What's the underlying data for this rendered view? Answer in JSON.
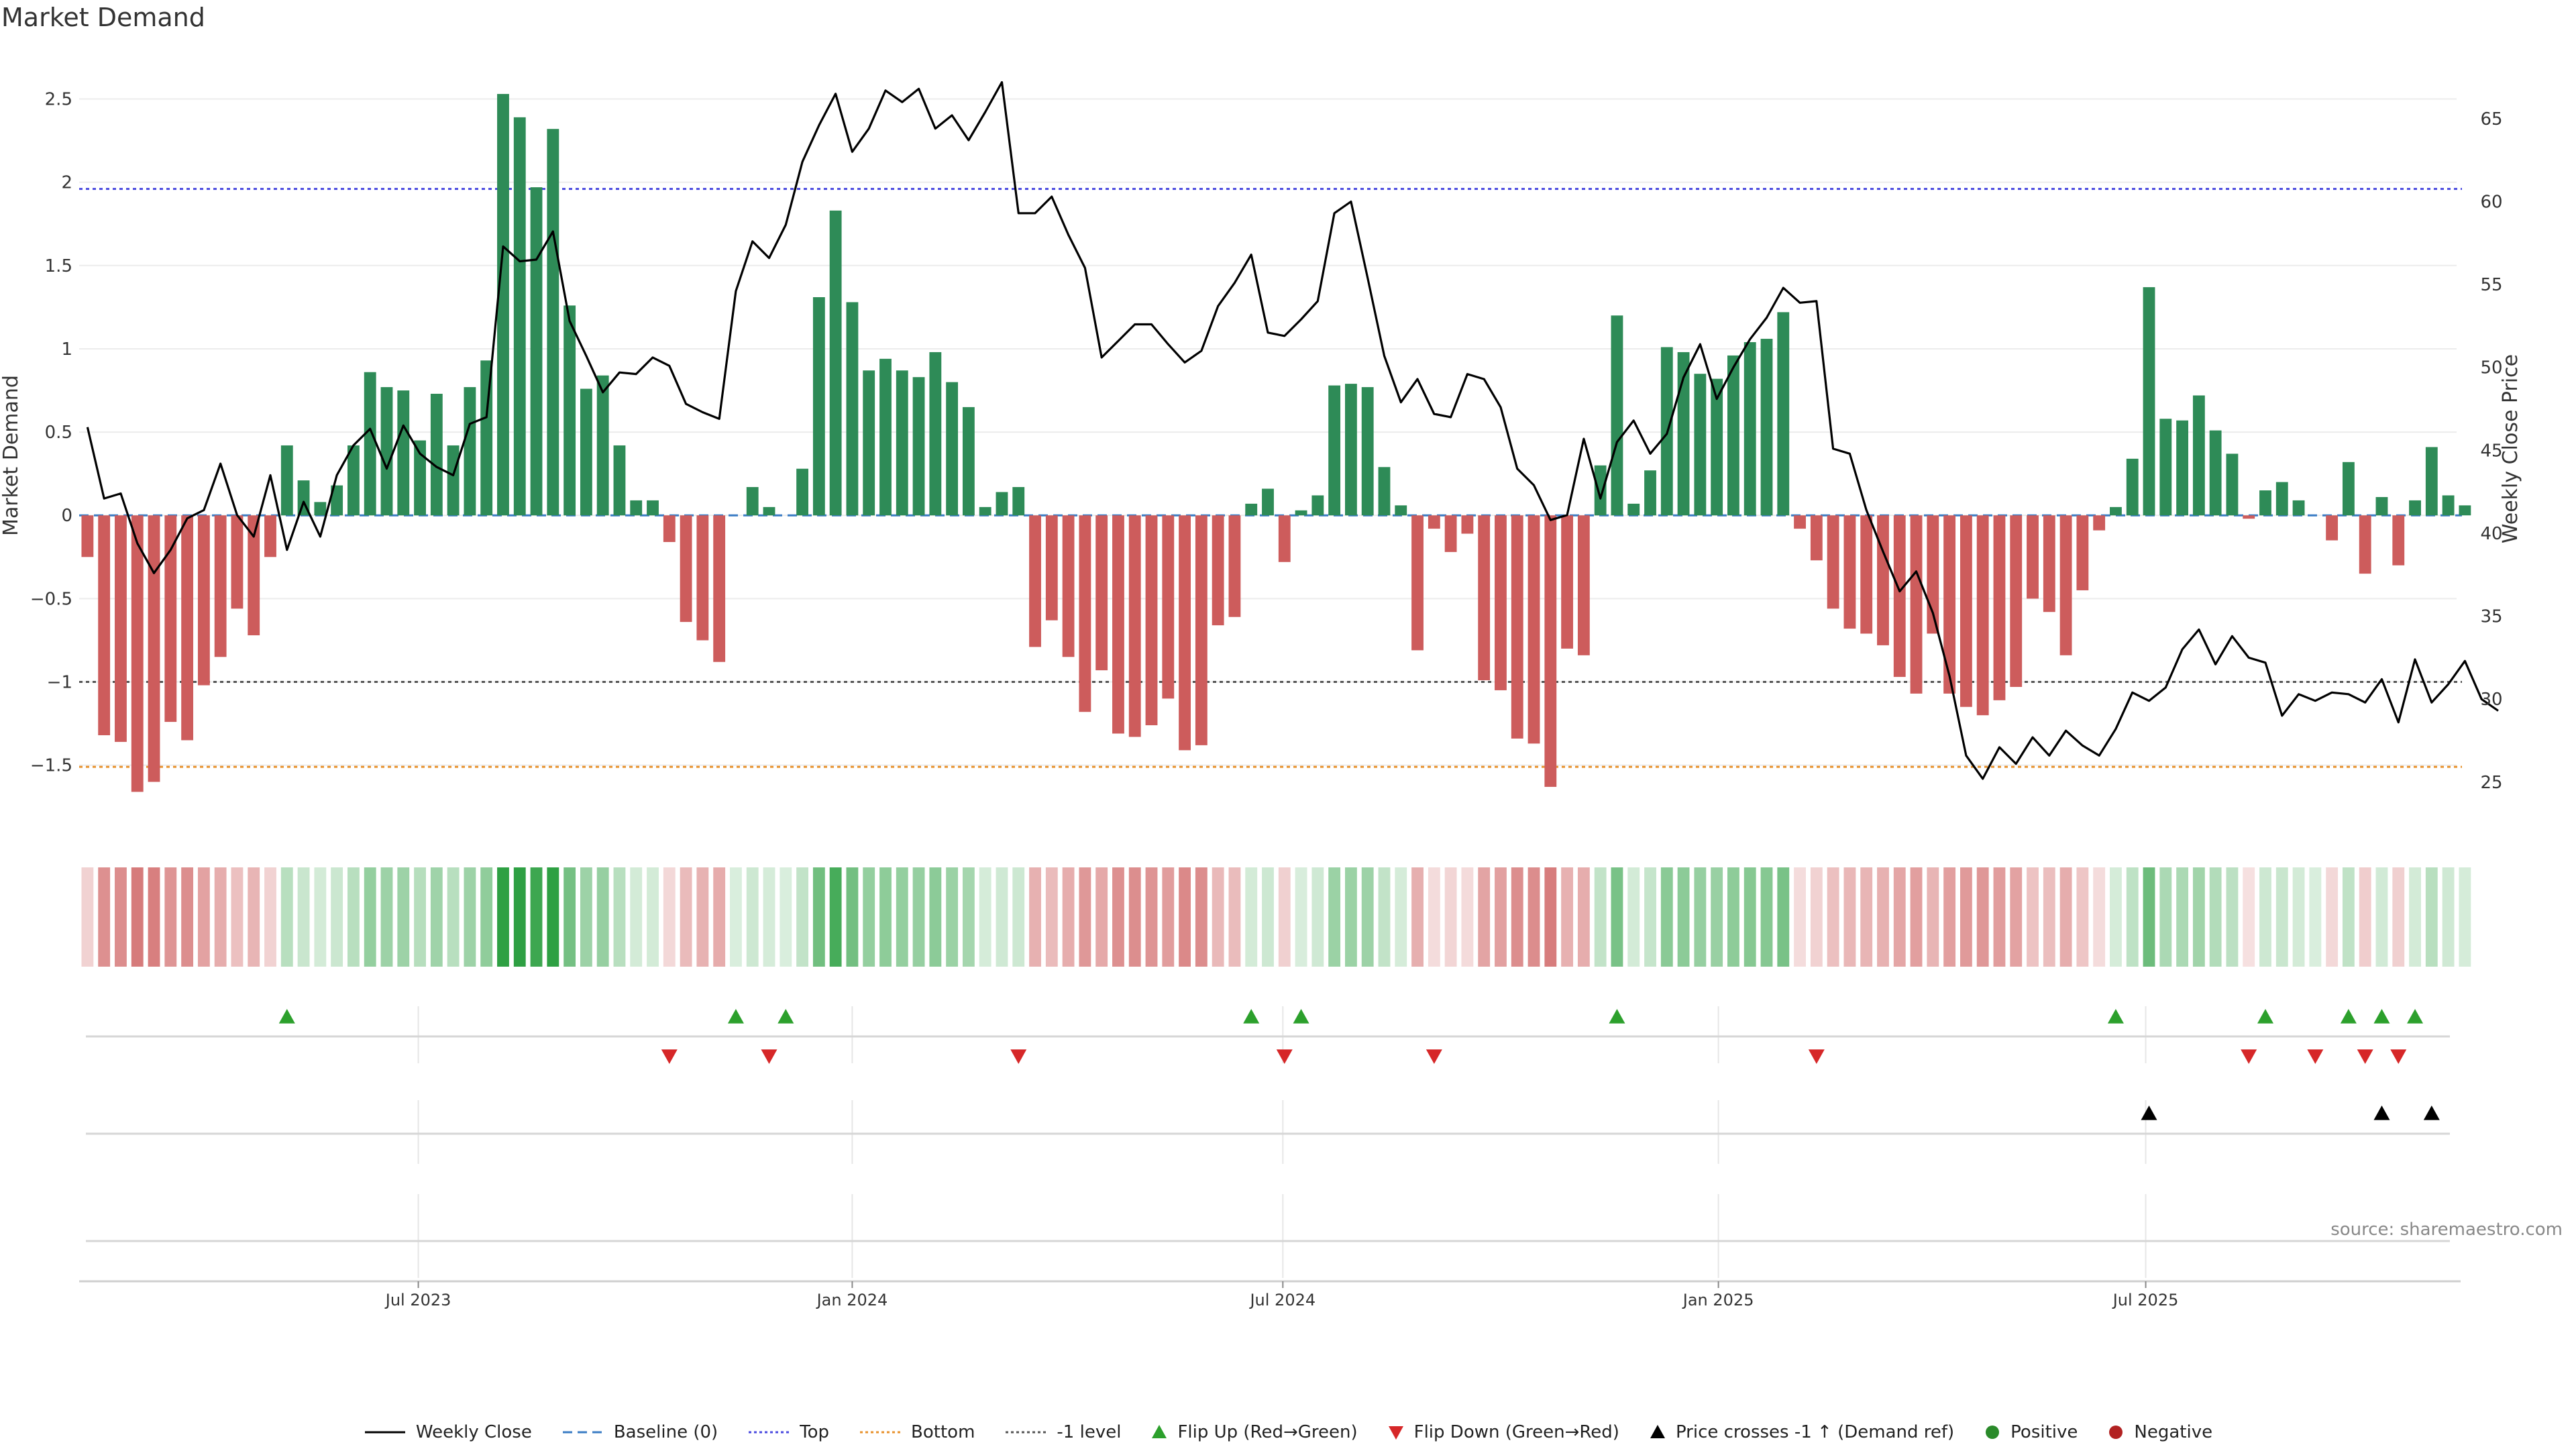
{
  "title": "Market Demand",
  "source": "source: sharemaestro.com",
  "colors": {
    "positive": "#2e8b57",
    "negative": "#cd5c5c",
    "line": "#000000",
    "top": "#4a4adf",
    "bottom": "#e8922c",
    "minus1": "#555555",
    "baseline": "#3a7cc4",
    "flip_up": "#2ca02c",
    "flip_down": "#d62728",
    "cross": "#000000",
    "pos_dot": "#2a8a2a",
    "neg_dot": "#b22222"
  },
  "chart_data": {
    "type": "bar+line",
    "ylabel_left": "Market Demand",
    "ylabel_right": "Weekly Close Price",
    "ylim_left": [
      -1.9,
      2.78
    ],
    "ylim_right": [
      22,
      69
    ],
    "yticks_left": [
      2.5,
      2,
      1.5,
      1,
      0.5,
      0,
      -0.5,
      -1,
      -1.5
    ],
    "yticks_left_labels": [
      "2.5",
      "2",
      "1.5",
      "1",
      "0.5",
      "0",
      "−0.5",
      "−1",
      "−1.5"
    ],
    "yticks_right": [
      65,
      60,
      55,
      50,
      45,
      40,
      35,
      30,
      25
    ],
    "reference_lines": {
      "top": 1.96,
      "bottom": -1.51,
      "minus1_level": -1.0,
      "baseline": 0
    },
    "x_range_weeks": [
      0,
      143
    ],
    "x_ticks": [
      {
        "label": "Jul 2023",
        "week": 20.4
      },
      {
        "label": "Jan 2024",
        "week": 46.5
      },
      {
        "label": "Jul 2024",
        "week": 72.4
      },
      {
        "label": "Jan 2025",
        "week": 98.6
      },
      {
        "label": "Jul 2025",
        "week": 124.3
      }
    ],
    "demand": [
      -0.25,
      -1.32,
      -1.36,
      -1.66,
      -1.6,
      -1.24,
      -1.35,
      -1.02,
      -0.85,
      -0.56,
      -0.72,
      -0.25,
      0.42,
      0.21,
      0.08,
      0.18,
      0.42,
      0.86,
      0.77,
      0.75,
      0.45,
      0.73,
      0.42,
      0.77,
      0.93,
      2.53,
      2.39,
      1.97,
      2.32,
      1.26,
      0.76,
      0.84,
      0.42,
      0.09,
      0.09,
      -0.16,
      -0.64,
      -0.75,
      -0.88,
      0.0,
      0.17,
      0.05,
      0.0,
      0.28,
      1.31,
      1.83,
      1.28,
      0.87,
      0.94,
      0.87,
      0.83,
      0.98,
      0.8,
      0.65,
      0.05,
      0.14,
      0.17,
      -0.79,
      -0.63,
      -0.85,
      -1.18,
      -0.93,
      -1.31,
      -1.33,
      -1.26,
      -1.1,
      -1.41,
      -1.38,
      -0.66,
      -0.61,
      0.07,
      0.16,
      -0.28,
      0.03,
      0.12,
      0.78,
      0.79,
      0.77,
      0.29,
      0.06,
      -0.81,
      -0.08,
      -0.22,
      -0.11,
      -0.99,
      -1.05,
      -1.34,
      -1.37,
      -1.63,
      -0.8,
      -0.84,
      0.3,
      1.2,
      0.07,
      0.27,
      1.01,
      0.98,
      0.85,
      0.82,
      0.96,
      1.04,
      1.06,
      1.22,
      -0.08,
      -0.27,
      -0.56,
      -0.68,
      -0.71,
      -0.78,
      -0.97,
      -1.07,
      -0.71,
      -1.07,
      -1.15,
      -1.2,
      -1.11,
      -1.03,
      -0.5,
      -0.58,
      -0.84,
      -0.45,
      -0.09,
      0.05,
      0.34,
      1.37,
      0.58,
      0.57,
      0.72,
      0.51,
      0.37,
      -0.02,
      0.15,
      0.2,
      0.09,
      0.0,
      -0.15,
      0.32,
      -0.35,
      0.11,
      -0.3,
      0.09,
      0.41,
      0.12,
      0.06
    ],
    "close": [
      46.4,
      42.1,
      42.4,
      39.4,
      37.6,
      39.0,
      40.9,
      41.4,
      44.2,
      41.1,
      39.8,
      43.5,
      39.0,
      41.9,
      39.8,
      43.5,
      45.3,
      46.3,
      43.9,
      46.5,
      44.8,
      44.0,
      43.5,
      46.6,
      47.0,
      57.3,
      56.4,
      56.5,
      58.2,
      52.8,
      50.7,
      48.5,
      49.7,
      49.6,
      50.6,
      50.1,
      47.8,
      47.3,
      46.9,
      54.6,
      57.6,
      56.6,
      58.6,
      62.4,
      64.6,
      66.5,
      63.0,
      64.4,
      66.7,
      66.0,
      66.8,
      64.4,
      65.2,
      63.7,
      65.4,
      67.2,
      59.3,
      59.3,
      60.3,
      58.0,
      56.0,
      50.6,
      51.6,
      52.6,
      52.6,
      51.4,
      50.3,
      51.0,
      53.7,
      55.1,
      56.8,
      52.1,
      51.9,
      52.9,
      54.0,
      59.3,
      60.0,
      55.4,
      50.7,
      47.9,
      49.3,
      47.2,
      47.0,
      49.6,
      49.3,
      47.6,
      43.9,
      42.9,
      40.8,
      41.1,
      45.7,
      42.1,
      45.5,
      46.8,
      44.8,
      46.0,
      49.4,
      51.4,
      48.1,
      50.0,
      51.7,
      53.0,
      54.8,
      53.9,
      54.0,
      45.1,
      44.8,
      41.4,
      38.9,
      36.5,
      37.7,
      35.2,
      31.4,
      26.6,
      25.2,
      27.1,
      26.1,
      27.7,
      26.6,
      28.1,
      27.2,
      26.6,
      28.2,
      30.4,
      29.9,
      30.7,
      33.0,
      34.2,
      32.1,
      33.8,
      32.5,
      32.2,
      29.0,
      30.3,
      29.9,
      30.4,
      30.3,
      29.8,
      31.2,
      28.6,
      32.4,
      29.8,
      30.9,
      32.3,
      30.0,
      29.3
    ],
    "heat_colors_note": "heat strip shade = demand value",
    "flip_up_weeks": [
      12,
      39,
      42,
      70,
      73,
      92,
      122,
      131,
      136,
      138,
      140
    ],
    "flip_down_weeks": [
      35,
      41,
      56,
      72,
      81,
      104,
      130,
      134,
      137,
      139
    ],
    "price_cross_weeks": [
      124,
      138,
      141
    ],
    "legend": [
      {
        "label": "Weekly Close",
        "kind": "line-solid",
        "color": "#000000"
      },
      {
        "label": "Baseline (0)",
        "kind": "line-dash",
        "color": "#3a7cc4"
      },
      {
        "label": "Top",
        "kind": "line-dot",
        "color": "#4a4adf"
      },
      {
        "label": "Bottom",
        "kind": "line-dot",
        "color": "#e8922c"
      },
      {
        "label": "-1 level",
        "kind": "line-dot",
        "color": "#555555"
      },
      {
        "label": "Flip Up (Red→Green)",
        "kind": "tri-up",
        "color": "#2ca02c"
      },
      {
        "label": "Flip Down (Green→Red)",
        "kind": "tri-down",
        "color": "#d62728"
      },
      {
        "label": "Price crosses -1 ↑ (Demand ref)",
        "kind": "tri-up",
        "color": "#000000"
      },
      {
        "label": "Positive",
        "kind": "dot",
        "color": "#2a8a2a"
      },
      {
        "label": "Negative",
        "kind": "dot",
        "color": "#b22222"
      }
    ]
  }
}
